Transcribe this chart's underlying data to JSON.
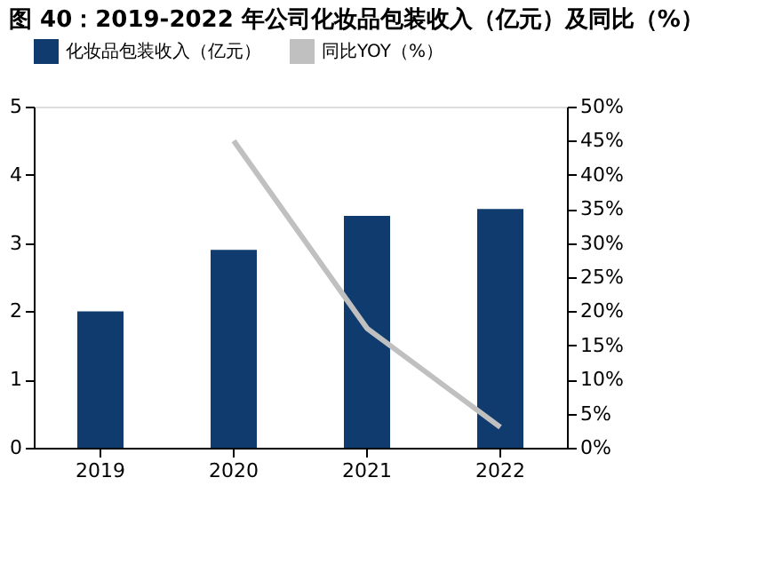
{
  "chart_data": {
    "type": "bar",
    "title": "图 40：2019-2022 年公司化妆品包装收入（亿元）及同比（%）",
    "categories": [
      "2019",
      "2020",
      "2021",
      "2022"
    ],
    "series": [
      {
        "name": "化妆品包装收入（亿元）",
        "color": "#0f3b6e",
        "values": [
          2.0,
          2.9,
          3.4,
          3.5
        ]
      },
      {
        "name": "同比YOY（%）",
        "type": "line",
        "axis": "y2",
        "color": "#c0c0c0",
        "values": [
          null,
          45,
          17.5,
          3
        ]
      }
    ],
    "ylim": [
      0,
      5
    ],
    "yticks": [
      0,
      1,
      2,
      3,
      4,
      5
    ],
    "y2lim": [
      0,
      50
    ],
    "y2ticks": [
      {
        "value": 0,
        "label": "0%"
      },
      {
        "value": 5,
        "label": "5%"
      },
      {
        "value": 10,
        "label": "10%"
      },
      {
        "value": 15,
        "label": "15%"
      },
      {
        "value": 20,
        "label": "20%"
      },
      {
        "value": 25,
        "label": "25%"
      },
      {
        "value": 30,
        "label": "30%"
      },
      {
        "value": 35,
        "label": "35%"
      },
      {
        "value": 40,
        "label": "40%"
      },
      {
        "value": 45,
        "label": "45%"
      },
      {
        "value": 50,
        "label": "50%"
      }
    ],
    "grid": false,
    "legend": "top",
    "marker": "none",
    "line_style": "solid"
  }
}
